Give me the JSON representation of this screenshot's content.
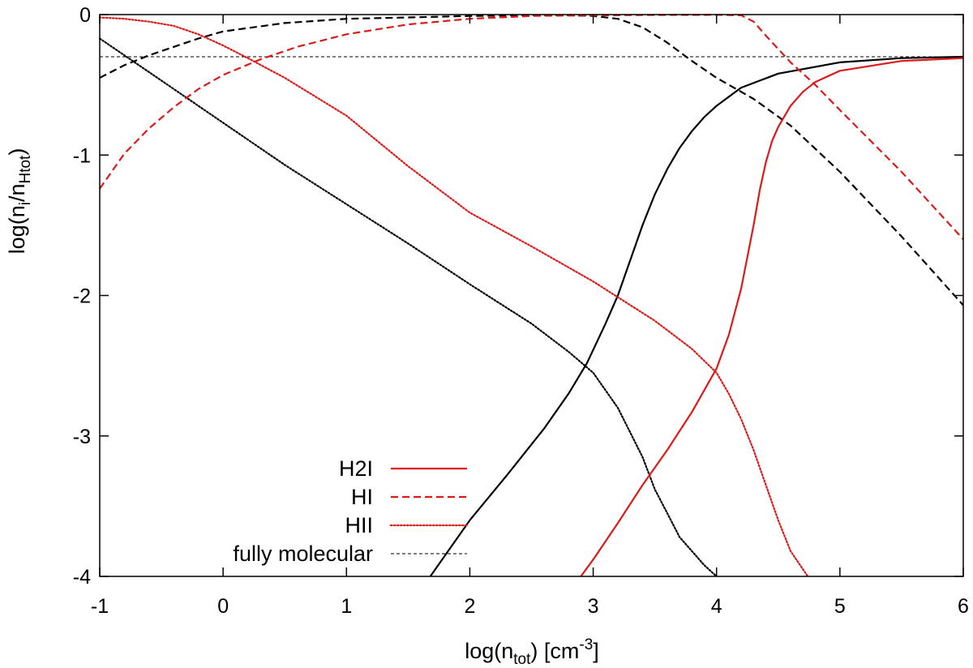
{
  "chart_data": {
    "type": "line",
    "xlabel": {
      "main": "log(n",
      "sub": "tot",
      "close": ") [cm",
      "sup": "-3",
      "end": "]"
    },
    "ylabel": {
      "main": "log(n",
      "sub1": "i",
      "mid": "/n",
      "sub2": "Htot",
      "end": ")"
    },
    "xlim": [
      -1,
      6
    ],
    "ylim": [
      -4,
      0
    ],
    "xticks": [
      "-1",
      "0",
      "1",
      "2",
      "3",
      "4",
      "5",
      "6"
    ],
    "yticks": [
      "0",
      "-1",
      "-2",
      "-3",
      "-4"
    ],
    "legend": {
      "position": "bottom-left",
      "entries": [
        "H2I",
        "HI",
        "HII",
        "fully molecular"
      ]
    },
    "reference_line": {
      "name": "fully molecular",
      "y": -0.3,
      "color": "#000000",
      "style": "thin-dashed"
    },
    "series": [
      {
        "name": "H2I",
        "group": "black",
        "color": "#000000",
        "style": "solid",
        "x": [
          1.68,
          2.0,
          2.3,
          2.6,
          2.8,
          2.95,
          3.1,
          3.2,
          3.3,
          3.4,
          3.5,
          3.6,
          3.7,
          3.8,
          3.9,
          4.0,
          4.2,
          4.5,
          5.0,
          5.5,
          6.0
        ],
        "y": [
          -4.0,
          -3.6,
          -3.28,
          -2.95,
          -2.7,
          -2.48,
          -2.2,
          -2.0,
          -1.75,
          -1.5,
          -1.28,
          -1.1,
          -0.95,
          -0.83,
          -0.73,
          -0.65,
          -0.52,
          -0.42,
          -0.34,
          -0.31,
          -0.3
        ]
      },
      {
        "name": "HI",
        "group": "black",
        "color": "#000000",
        "style": "dashed",
        "x": [
          -1.0,
          -0.8,
          -0.6,
          -0.4,
          -0.2,
          0.0,
          0.5,
          1.0,
          1.5,
          2.0,
          2.5,
          2.8,
          3.0,
          3.2,
          3.4,
          3.6,
          3.8,
          4.0,
          4.3,
          4.6,
          5.0,
          5.5,
          6.0
        ],
        "y": [
          -0.45,
          -0.36,
          -0.29,
          -0.23,
          -0.17,
          -0.12,
          -0.06,
          -0.03,
          -0.02,
          -0.01,
          -0.005,
          -0.005,
          -0.01,
          -0.03,
          -0.09,
          -0.2,
          -0.33,
          -0.45,
          -0.6,
          -0.79,
          -1.12,
          -1.58,
          -2.07
        ]
      },
      {
        "name": "HII",
        "group": "black",
        "color": "#000000",
        "style": "dotted",
        "x": [
          -1.0,
          -0.8,
          -0.6,
          -0.4,
          -0.2,
          0.0,
          0.5,
          1.0,
          1.5,
          2.0,
          2.5,
          2.8,
          3.0,
          3.2,
          3.4,
          3.5,
          3.6,
          3.7,
          3.8,
          3.9,
          4.0
        ],
        "y": [
          -0.17,
          -0.29,
          -0.41,
          -0.53,
          -0.65,
          -0.77,
          -1.07,
          -1.35,
          -1.63,
          -1.92,
          -2.2,
          -2.4,
          -2.55,
          -2.8,
          -3.15,
          -3.38,
          -3.55,
          -3.72,
          -3.82,
          -3.92,
          -4.0
        ]
      },
      {
        "name": "H2I",
        "group": "red",
        "color": "#dd1a1a",
        "style": "solid",
        "x": [
          2.9,
          3.0,
          3.2,
          3.4,
          3.6,
          3.8,
          4.0,
          4.1,
          4.2,
          4.3,
          4.35,
          4.4,
          4.45,
          4.5,
          4.6,
          4.7,
          4.8,
          5.0,
          5.5,
          6.0
        ],
        "y": [
          -4.0,
          -3.88,
          -3.62,
          -3.35,
          -3.1,
          -2.83,
          -2.52,
          -2.28,
          -1.95,
          -1.5,
          -1.25,
          -1.05,
          -0.9,
          -0.8,
          -0.65,
          -0.55,
          -0.48,
          -0.4,
          -0.33,
          -0.31
        ]
      },
      {
        "name": "HI",
        "group": "red",
        "color": "#dd1a1a",
        "style": "dashed",
        "x": [
          -1.0,
          -0.8,
          -0.6,
          -0.4,
          -0.2,
          0.0,
          0.3,
          0.6,
          1.0,
          1.5,
          2.0,
          2.5,
          3.0,
          3.5,
          4.0,
          4.2,
          4.3,
          4.4,
          4.6,
          4.8,
          5.0,
          5.5,
          6.0
        ],
        "y": [
          -1.24,
          -0.99,
          -0.81,
          -0.66,
          -0.53,
          -0.43,
          -0.32,
          -0.23,
          -0.14,
          -0.07,
          -0.03,
          -0.01,
          -0.005,
          -0.003,
          -0.002,
          -0.005,
          -0.05,
          -0.15,
          -0.34,
          -0.5,
          -0.68,
          -1.12,
          -1.6
        ]
      },
      {
        "name": "HII",
        "group": "red",
        "color": "#dd1a1a",
        "style": "dotted",
        "x": [
          -1.0,
          -0.8,
          -0.6,
          -0.4,
          -0.2,
          0.0,
          0.2,
          0.5,
          1.0,
          1.5,
          2.0,
          2.5,
          3.0,
          3.5,
          3.8,
          4.0,
          4.1,
          4.2,
          4.3,
          4.4,
          4.5,
          4.6,
          4.74
        ],
        "y": [
          -0.02,
          -0.03,
          -0.05,
          -0.08,
          -0.14,
          -0.22,
          -0.31,
          -0.45,
          -0.72,
          -1.08,
          -1.41,
          -1.65,
          -1.9,
          -2.18,
          -2.38,
          -2.55,
          -2.7,
          -2.88,
          -3.1,
          -3.35,
          -3.6,
          -3.82,
          -4.0
        ]
      }
    ]
  }
}
